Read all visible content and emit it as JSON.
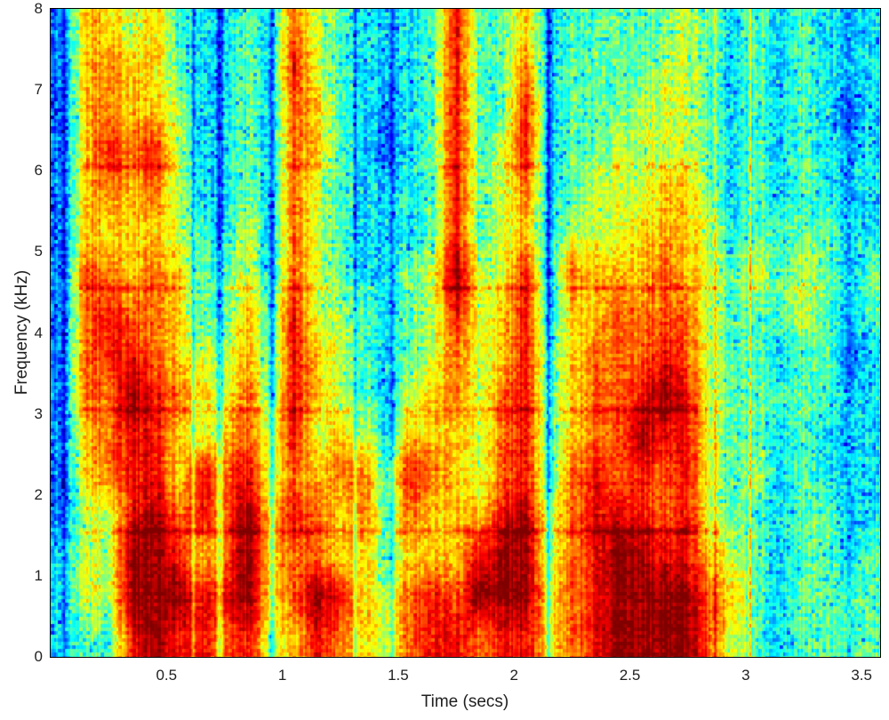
{
  "figure": {
    "title": "",
    "background_color": "#ffffff",
    "axis_box_color": "#000000",
    "label_color": "#1f1f1f"
  },
  "chart_data": {
    "type": "heatmap",
    "subtype": "speech-spectrogram",
    "colormap": "jet",
    "title": "",
    "xlabel": "Time (secs)",
    "ylabel": "Frequency (kHz)",
    "xlim": [
      0,
      3.58
    ],
    "ylim": [
      0,
      8
    ],
    "xticks": [
      0.5,
      1,
      1.5,
      2,
      2.5,
      3,
      3.5
    ],
    "xtick_labels": [
      "0.5",
      "1",
      "1.5",
      "2",
      "2.5",
      "3",
      "3.5"
    ],
    "yticks": [
      0,
      1,
      2,
      3,
      4,
      5,
      6,
      7,
      8
    ],
    "ytick_labels": [
      "0",
      "1",
      "2",
      "3",
      "4",
      "5",
      "6",
      "7",
      "8"
    ],
    "grid": false,
    "legend": false,
    "intensity": {
      "description": "Relative log-power on a 0(quiet,dark blue)..9(loud,dark red) scale. rows[0] is the 7.5-8 kHz band, rows[15] is the 0-0.5 kHz band (bin 0.5 kHz). Each row has 36 chars = time bins of 0.1 s from 0 to 3.6 s.",
      "freq_bin_khz": 0.5,
      "time_bin_s": 0.1,
      "rows": [
        "266564334375433348446344444543434333",
        "267664334385433348447344445543434333",
        "267665334376432348448344455543434323",
        "268785334376432348458344555543434333",
        "267675334375433348457345556643434333",
        "266665435375433348456355566653444433",
        "277676445375433459558376667654545434",
        "278776446485543458568366777754445434",
        "278876556486543457568467778754434423",
        "277987657486543567578467789854444433",
        "267886567585653666578467798854434333",
        "267886878576774876578478787854534333",
        "255897879687674766689578887854434433",
        "355998679677664666899578998865434434",
        "355999889679865787999678999976434444",
        "344898878568765788788678999975434444"
      ]
    },
    "narrowband_events": [
      {
        "time": 0.06,
        "half_width_s": 0.025,
        "delta": -1.5,
        "label": "quiet lead-in"
      },
      {
        "time": 0.615,
        "half_width_s": 0.012,
        "delta": -1.5,
        "label": "gap"
      },
      {
        "time": 0.73,
        "half_width_s": 0.02,
        "delta": -2.2,
        "label": "stop gap"
      },
      {
        "time": 0.955,
        "half_width_s": 0.018,
        "delta": -2.2,
        "label": "stop gap"
      },
      {
        "time": 1.315,
        "half_width_s": 0.015,
        "delta": -1.8,
        "label": "gap"
      },
      {
        "time": 1.475,
        "half_width_s": 0.02,
        "delta": -1.8,
        "label": "gap"
      },
      {
        "time": 2.15,
        "half_width_s": 0.022,
        "delta": -2.2,
        "label": "stop gap"
      },
      {
        "time": 2.87,
        "half_width_s": 0.01,
        "delta": 1.6,
        "label": "click"
      },
      {
        "time": 3.02,
        "half_width_s": 0.007,
        "delta": 2.4,
        "label": "click"
      },
      {
        "time": 3.44,
        "half_width_s": 0.02,
        "delta": -0.9,
        "label": "fade"
      }
    ],
    "harmonic_bands_khz": [
      1.55,
      3.05,
      4.55,
      6.05
    ]
  }
}
